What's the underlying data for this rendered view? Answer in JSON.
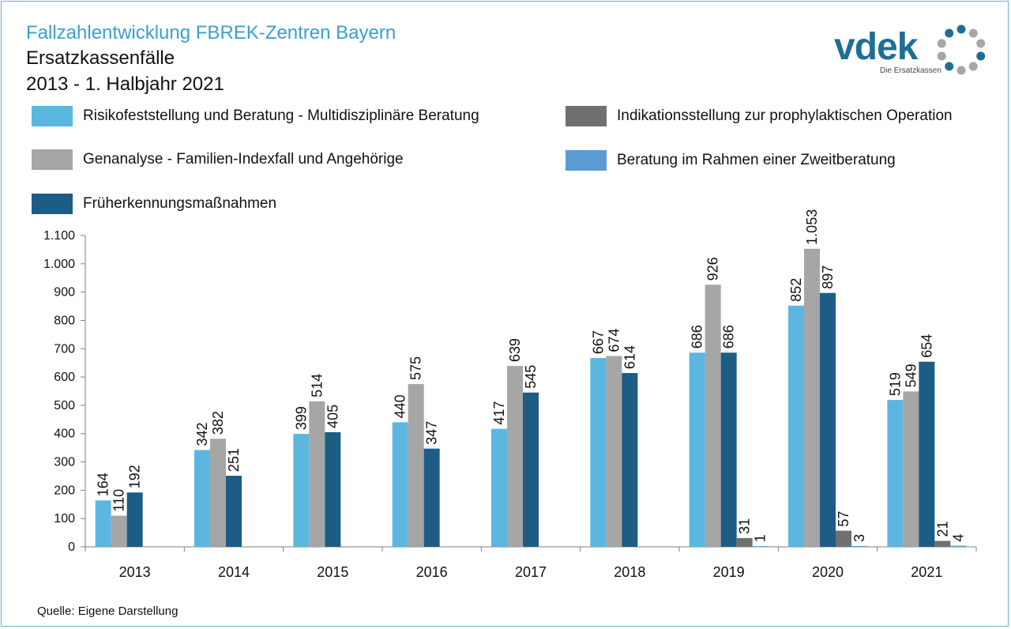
{
  "header": {
    "title": "Fallzahlentwicklung FBREK-Zentren Bayern",
    "subtitle": "Ersatzkassenfälle",
    "period": "2013 - 1. Halbjahr 2021"
  },
  "logo": {
    "text": "vdek",
    "subtext": "Die Ersatzkassen"
  },
  "source": "Quelle: Eigene Darstellung",
  "colors": {
    "risk": "#5bb7e0",
    "genetic": "#a6a6a6",
    "early": "#1d5c85",
    "indication": "#707070",
    "second": "#5b9bd5",
    "logo_blue": "#1f6e94",
    "logo_grey": "#a6a6a6"
  },
  "chart_data": {
    "type": "bar",
    "title": "Fallzahlentwicklung FBREK-Zentren Bayern",
    "xlabel": "",
    "ylabel": "",
    "ylim": [
      0,
      1100
    ],
    "yticks": [
      0,
      100,
      200,
      300,
      400,
      500,
      600,
      700,
      800,
      900,
      1000,
      1100
    ],
    "ytick_labels": [
      "0",
      "100",
      "200",
      "300",
      "400",
      "500",
      "600",
      "700",
      "800",
      "900",
      "1.000",
      "1.100"
    ],
    "grid": false,
    "legend_position": "top",
    "categories": [
      "2013",
      "2014",
      "2015",
      "2016",
      "2017",
      "2018",
      "2019",
      "2020",
      "2021"
    ],
    "series": [
      {
        "name": "Risikofeststellung und Beratung - Multidisziplinäre Beratung",
        "color": "#5bb7e0",
        "values": [
          164,
          342,
          399,
          440,
          417,
          667,
          686,
          852,
          519
        ],
        "labels": [
          "164",
          "342",
          "399",
          "440",
          "417",
          "667",
          "686",
          "852",
          "519"
        ]
      },
      {
        "name": "Genanalyse - Familien-Indexfall und Angehörige",
        "color": "#a6a6a6",
        "values": [
          110,
          382,
          514,
          575,
          639,
          674,
          926,
          1053,
          549
        ],
        "labels": [
          "110",
          "382",
          "514",
          "575",
          "639",
          "674",
          "926",
          "1.053",
          "549"
        ]
      },
      {
        "name": "Früherkennungsmaßnahmen",
        "color": "#1d5c85",
        "values": [
          192,
          251,
          405,
          347,
          545,
          614,
          686,
          897,
          654
        ],
        "labels": [
          "192",
          "251",
          "405",
          "347",
          "545",
          "614",
          "686",
          "897",
          "654"
        ]
      },
      {
        "name": "Indikationsstellung zur prophylaktischen Operation",
        "color": "#707070",
        "values": [
          null,
          null,
          null,
          null,
          null,
          null,
          31,
          57,
          21
        ],
        "labels": [
          "",
          "",
          "",
          "",
          "",
          "",
          "31",
          "57",
          "21"
        ]
      },
      {
        "name": "Beratung im Rahmen einer Zweitberatung",
        "color": "#5b9bd5",
        "values": [
          null,
          null,
          null,
          null,
          null,
          null,
          1,
          3,
          4
        ],
        "labels": [
          "",
          "",
          "",
          "",
          "",
          "",
          "1",
          "3",
          "4"
        ]
      }
    ]
  }
}
